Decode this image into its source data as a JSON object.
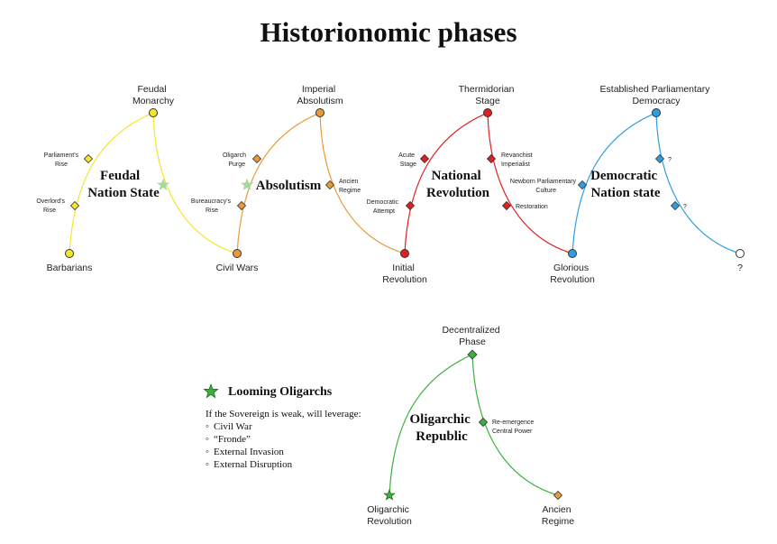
{
  "title": "Historionomic phases",
  "colors": {
    "feudal": "#f5e52c",
    "absolutism": "#e89a3a",
    "national": "#e02020",
    "democratic": "#2f9ee0",
    "oligarchic": "#3cb03c",
    "looming_star": "#a6d89a",
    "unknown": "#ffffff"
  },
  "phases": {
    "feudal": [
      "Feudal",
      "Nation State"
    ],
    "absolutism": [
      "Absolutism"
    ],
    "national": [
      "National",
      "Revolution"
    ],
    "democratic": [
      "Democratic",
      "Nation state"
    ],
    "oligarchic": [
      "Oligarchic",
      "Republic"
    ]
  },
  "nodes": {
    "barbarians": [
      "Barbarians"
    ],
    "feudal_monarchy": [
      "Feudal",
      "Monarchy"
    ],
    "civil_wars": [
      "Civil Wars"
    ],
    "imperial_absolutism": [
      "Imperial",
      "Absolutism"
    ],
    "initial_revolution": [
      "Initial",
      "Revolution"
    ],
    "thermidorian_stage": [
      "Thermidorian",
      "Stage"
    ],
    "glorious_revolution": [
      "Glorious",
      "Revolution"
    ],
    "established_democracy": [
      "Established Parliamentary",
      "Democracy"
    ],
    "unknown_end": [
      "?"
    ],
    "decentralized_phase": [
      "Decentralized",
      "Phase"
    ],
    "oligarchic_revolution": [
      "Oligarchic",
      "Revolution"
    ],
    "ancien_regime": [
      "Ancien",
      "Regime"
    ]
  },
  "substages": {
    "parliaments_rise": [
      "Parliament's",
      "Rise"
    ],
    "overlords_rise": [
      "Overlord's",
      "Rise"
    ],
    "oligarch_purge": [
      "Oligarch",
      "Purge"
    ],
    "bureaucracys_rise": [
      "Bureaucracy's",
      "Rise"
    ],
    "ancien_regime_small": [
      "Ancien",
      "Regime"
    ],
    "acute_stage": [
      "Acute",
      "Stage"
    ],
    "democratic_attempt": [
      "Democratic",
      "Attempt"
    ],
    "revanchist_imperialist": [
      "Revanchist",
      "Imperialist"
    ],
    "restoration": [
      "Restoration"
    ],
    "newborn_culture": [
      "Newborn Parliamentary",
      "Culture"
    ],
    "q1": [
      "?"
    ],
    "q2": [
      "?"
    ],
    "reemergence": [
      "Re-emergence",
      "Central Power"
    ]
  },
  "legend": {
    "title": "Looming Oligarchs",
    "intro": "If the Sovereign is weak, will leverage:",
    "items": [
      "Civil War",
      "“Fronde”",
      "External Invasion",
      "External Disruption"
    ]
  }
}
